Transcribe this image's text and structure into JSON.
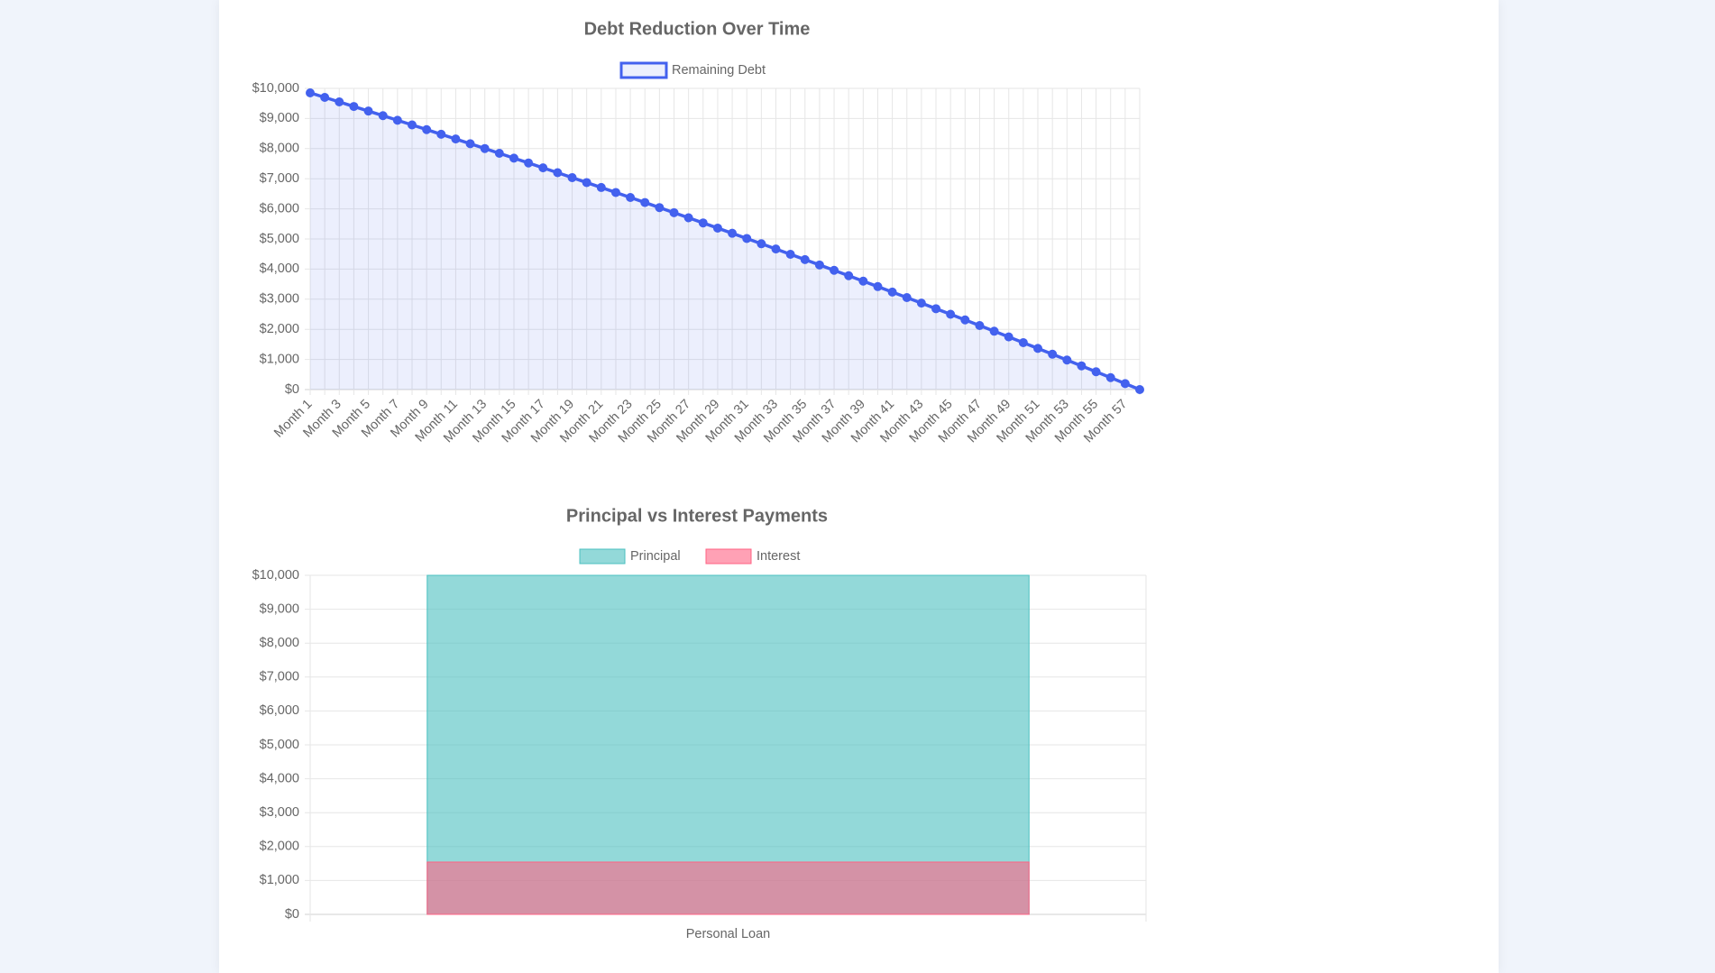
{
  "chart_data": [
    {
      "type": "line",
      "title": "Debt Reduction Over Time",
      "categories": [
        "Month 1",
        null,
        "Month 3",
        null,
        "Month 5",
        null,
        "Month 7",
        null,
        "Month 9",
        null,
        "Month 11",
        null,
        "Month 13",
        null,
        "Month 15",
        null,
        "Month 17",
        null,
        "Month 19",
        null,
        "Month 21",
        null,
        "Month 23",
        null,
        "Month 25",
        null,
        "Month 27",
        null,
        "Month 29",
        null,
        "Month 31",
        null,
        "Month 33",
        null,
        "Month 35",
        null,
        "Month 37",
        null,
        "Month 39",
        null,
        "Month 41",
        null,
        "Month 43",
        null,
        "Month 45",
        null,
        "Month 47",
        null,
        "Month 49",
        null,
        "Month 51",
        null,
        "Month 53",
        null,
        "Month 55",
        null,
        "Month 57",
        null
      ],
      "series": [
        {
          "name": "Remaining Debt",
          "color": "#4361ee",
          "values": [
            9851,
            9701,
            9551,
            9399,
            9247,
            9095,
            8941,
            8787,
            8631,
            8476,
            8319,
            8162,
            8003,
            7844,
            7684,
            7524,
            7362,
            7200,
            7037,
            6873,
            6709,
            6543,
            6377,
            6210,
            6042,
            5873,
            5703,
            5533,
            5361,
            5189,
            5016,
            4842,
            4667,
            4491,
            4315,
            4137,
            3959,
            3780,
            3600,
            3419,
            3237,
            3054,
            2870,
            2685,
            2500,
            2313,
            2126,
            1937,
            1748,
            1558,
            1366,
            1174,
            981,
            787,
            592,
            396,
            199,
            0
          ]
        }
      ],
      "ylim": [
        0,
        10000
      ],
      "yticks": [
        {
          "value": 0,
          "label": "$0"
        },
        {
          "value": 1000,
          "label": "$1,000"
        },
        {
          "value": 2000,
          "label": "$2,000"
        },
        {
          "value": 3000,
          "label": "$3,000"
        },
        {
          "value": 4000,
          "label": "$4,000"
        },
        {
          "value": 5000,
          "label": "$5,000"
        },
        {
          "value": 6000,
          "label": "$6,000"
        },
        {
          "value": 7000,
          "label": "$7,000"
        },
        {
          "value": 8000,
          "label": "$8,000"
        },
        {
          "value": 9000,
          "label": "$9,000"
        },
        {
          "value": 10000,
          "label": "$10,000"
        }
      ],
      "grid": true,
      "legend": "top"
    },
    {
      "type": "bar",
      "title": "Principal vs Interest Payments",
      "categories": [
        "Personal Loan"
      ],
      "series": [
        {
          "name": "Principal",
          "color": "#4bc0c0",
          "values": [
            10000
          ]
        },
        {
          "name": "Interest",
          "color": "#ff6384",
          "values": [
            1543
          ]
        }
      ],
      "stacked": false,
      "ylim": [
        0,
        10000
      ],
      "yticks": [
        {
          "value": 0,
          "label": "$0"
        },
        {
          "value": 1000,
          "label": "$1,000"
        },
        {
          "value": 2000,
          "label": "$2,000"
        },
        {
          "value": 3000,
          "label": "$3,000"
        },
        {
          "value": 4000,
          "label": "$4,000"
        },
        {
          "value": 5000,
          "label": "$5,000"
        },
        {
          "value": 6000,
          "label": "$6,000"
        },
        {
          "value": 7000,
          "label": "$7,000"
        },
        {
          "value": 8000,
          "label": "$8,000"
        },
        {
          "value": 9000,
          "label": "$9,000"
        },
        {
          "value": 10000,
          "label": "$10,000"
        }
      ],
      "grid": true,
      "legend": "top"
    }
  ]
}
